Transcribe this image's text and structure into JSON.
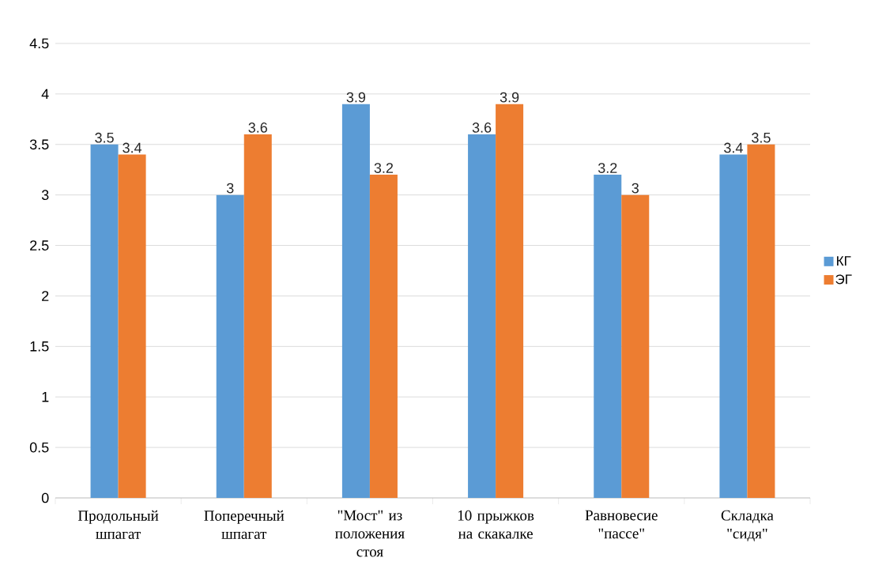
{
  "chart_data": {
    "type": "bar",
    "categories": [
      "Продольный шпагат",
      "Поперечный шпагат",
      "\"Мост\" из положения стоя",
      "10 прыжков на скакалке",
      "Равновесие \"пассе\"",
      "Складка \"сидя\""
    ],
    "series": [
      {
        "name": "КГ",
        "color": "#5b9bd5",
        "values": [
          3.5,
          3.0,
          3.9,
          3.6,
          3.2,
          3.4
        ]
      },
      {
        "name": "ЭГ",
        "color": "#ed7d31",
        "values": [
          3.4,
          3.6,
          3.2,
          3.9,
          3.0,
          3.5
        ]
      }
    ],
    "ylim": [
      0,
      4.5
    ],
    "yticks": [
      0,
      0.5,
      1,
      1.5,
      2,
      2.5,
      3,
      3.5,
      4,
      4.5
    ],
    "grid": "y",
    "legend": "right",
    "data_labels": true
  }
}
